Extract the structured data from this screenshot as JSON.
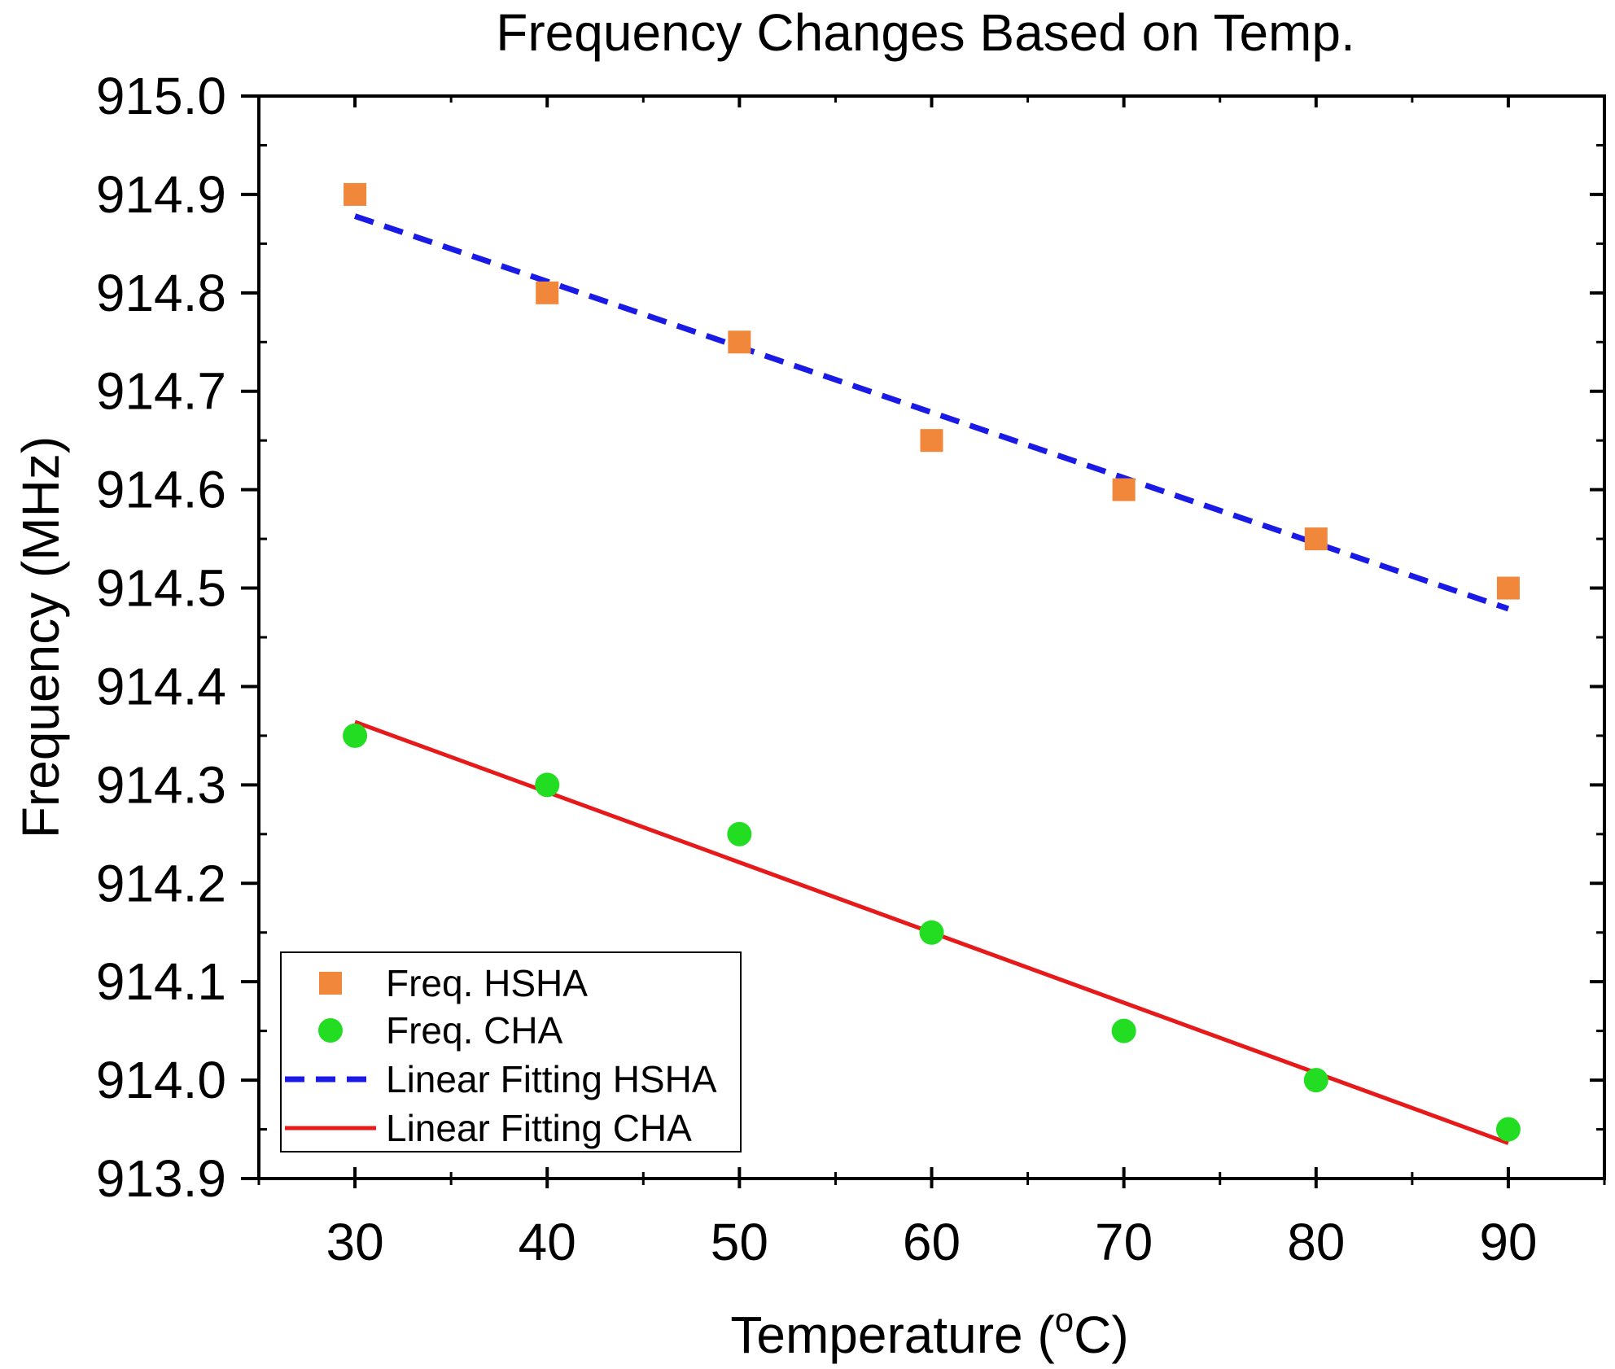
{
  "chart_data": {
    "type": "scatter",
    "title": "Frequency Changes Based on Temp.",
    "xlabel": {
      "prefix": "Temperature (",
      "superscript": "o",
      "suffix": "C)"
    },
    "ylabel": "Frequency (MHz)",
    "xlim": [
      25,
      95
    ],
    "ylim": [
      913.9,
      915.0
    ],
    "x_major_ticks": [
      30,
      40,
      50,
      60,
      70,
      80,
      90
    ],
    "x_minor_ticks": [
      25,
      35,
      45,
      55,
      65,
      75,
      85,
      95
    ],
    "y_major_ticks": [
      913.9,
      914.0,
      914.1,
      914.2,
      914.3,
      914.4,
      914.5,
      914.6,
      914.7,
      914.8,
      914.9,
      915.0
    ],
    "x_tick_labels": [
      "30",
      "40",
      "50",
      "60",
      "70",
      "80",
      "90"
    ],
    "y_tick_labels": [
      "913.9",
      "914.0",
      "914.1",
      "914.2",
      "914.3",
      "914.4",
      "914.5",
      "914.6",
      "914.7",
      "914.8",
      "914.9",
      "915.0"
    ],
    "series": [
      {
        "name": "Freq. HSHA",
        "kind": "scatter",
        "marker": "square",
        "color": "#F0873A",
        "x": [
          30,
          40,
          50,
          60,
          70,
          80,
          90
        ],
        "y": [
          914.9,
          914.8,
          914.75,
          914.65,
          914.6,
          914.55,
          914.5
        ]
      },
      {
        "name": "Freq. CHA",
        "kind": "scatter",
        "marker": "circle",
        "color": "#22DD22",
        "x": [
          30,
          40,
          50,
          60,
          70,
          80,
          90
        ],
        "y": [
          914.35,
          914.3,
          914.25,
          914.15,
          914.05,
          914.0,
          913.95
        ]
      },
      {
        "name": "Linear Fitting HSHA",
        "kind": "line",
        "style": "dashed",
        "color": "#1A1AE6",
        "x": [
          30,
          90
        ],
        "y": [
          914.878,
          914.479
        ]
      },
      {
        "name": "Linear Fitting CHA",
        "kind": "line",
        "style": "solid",
        "color": "#E61A1A",
        "x": [
          30,
          90
        ],
        "y": [
          914.364,
          913.936
        ]
      }
    ],
    "legend": {
      "placement": "bottom-left",
      "entries": [
        "Freq. HSHA",
        "Freq. CHA",
        "Linear Fitting HSHA",
        "Linear Fitting CHA"
      ]
    },
    "grid": false
  }
}
